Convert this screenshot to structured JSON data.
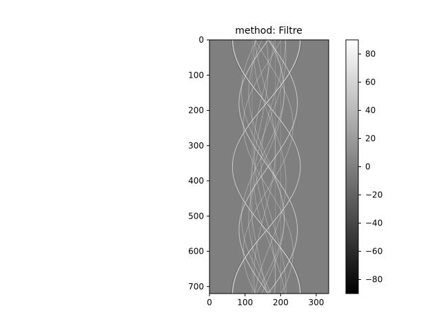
{
  "chart_data": [
    {
      "type": "heatmap",
      "title": "method: Filtre",
      "xlabel": "",
      "ylabel": "",
      "xlim": [
        0,
        335
      ],
      "ylim": [
        720,
        0
      ],
      "xticks": [
        0,
        100,
        200,
        300
      ],
      "yticks": [
        0,
        100,
        200,
        300,
        400,
        500,
        600,
        700
      ],
      "colormap": "gray",
      "background_value": 0,
      "grid": false,
      "description_of_content": "filtered sinogram: sinusoidal traces of object edges"
    },
    {
      "type": "colorbar",
      "range": [
        -90,
        90
      ],
      "ticks": [
        80,
        60,
        40,
        20,
        0,
        -20,
        -40,
        -60,
        -80
      ],
      "tick_labels": [
        "80",
        "60",
        "40",
        "20",
        "0",
        "−20",
        "−40",
        "−60",
        "−80"
      ],
      "colormap": "gray"
    }
  ],
  "colors": {
    "background_gray": "#7f7f7f",
    "trace_light": "#e8e8e8",
    "trace_dark": "#3a3a3a"
  }
}
